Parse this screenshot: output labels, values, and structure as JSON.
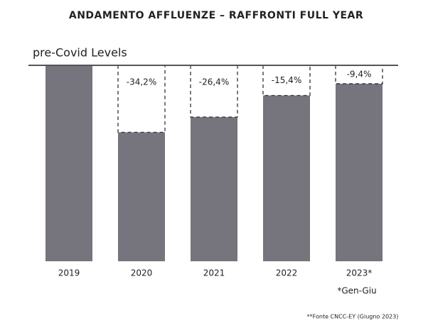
{
  "chart_data": {
    "type": "bar",
    "title": "ANDAMENTO AFFLUENZE – RAFFRONTI FULL YEAR",
    "subtitle": "pre-Covid Levels",
    "categories": [
      "2019",
      "2020",
      "2021",
      "2022",
      "2023*"
    ],
    "values": [
      0,
      -34.2,
      -26.4,
      -15.4,
      -9.4
    ],
    "value_labels": [
      null,
      "-34,2%",
      "-26,4%",
      "-15,4%",
      "-9,4%"
    ],
    "color": "#76747c",
    "ylim": [
      -100,
      0
    ],
    "note": "*Gen-Giu",
    "source": "**Fonte CNCC-EY (Giugno 2023)"
  }
}
